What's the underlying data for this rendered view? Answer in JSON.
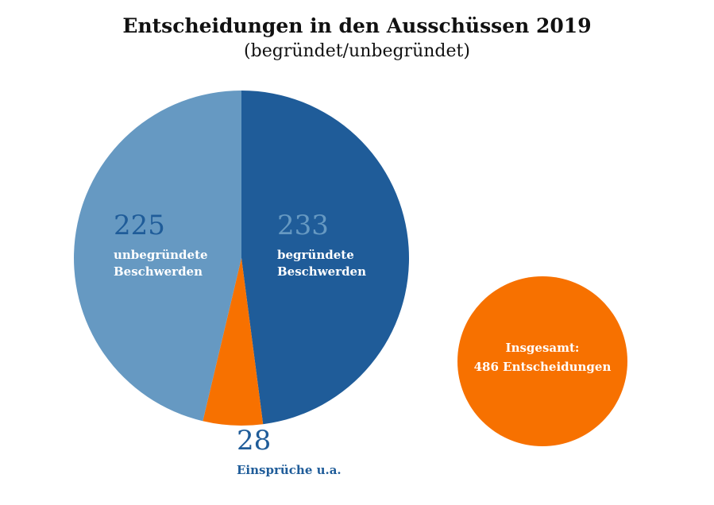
{
  "header": {
    "title": "Entscheidungen in den Ausschüssen 2019",
    "subtitle": "(begründet/unbegründet)"
  },
  "chart_data": {
    "type": "pie",
    "title": "Entscheidungen in den Ausschüssen 2019",
    "subtitle": "(begründet/unbegründet)",
    "slices": [
      {
        "value": 233,
        "value_label": "233",
        "label_lines": [
          "begründete",
          "Beschwerden"
        ],
        "color": "#1f5c99",
        "value_color": "#6699c2",
        "label_color": "#ffffff"
      },
      {
        "value": 28,
        "value_label": "28",
        "label_lines": [
          "Einsprüche u.a."
        ],
        "color": "#f77100",
        "value_color": "#1f5c99",
        "label_color": "#1f5c99"
      },
      {
        "value": 225,
        "value_label": "225",
        "label_lines": [
          "unbegründete",
          "Beschwerden"
        ],
        "color": "#6699c2",
        "value_color": "#1f5c99",
        "label_color": "#ffffff"
      }
    ],
    "total": {
      "label_lines": [
        "Insgesamt:",
        "486 Entscheidungen"
      ],
      "value": 486,
      "color": "#f77100",
      "text_color": "#ffffff"
    }
  }
}
